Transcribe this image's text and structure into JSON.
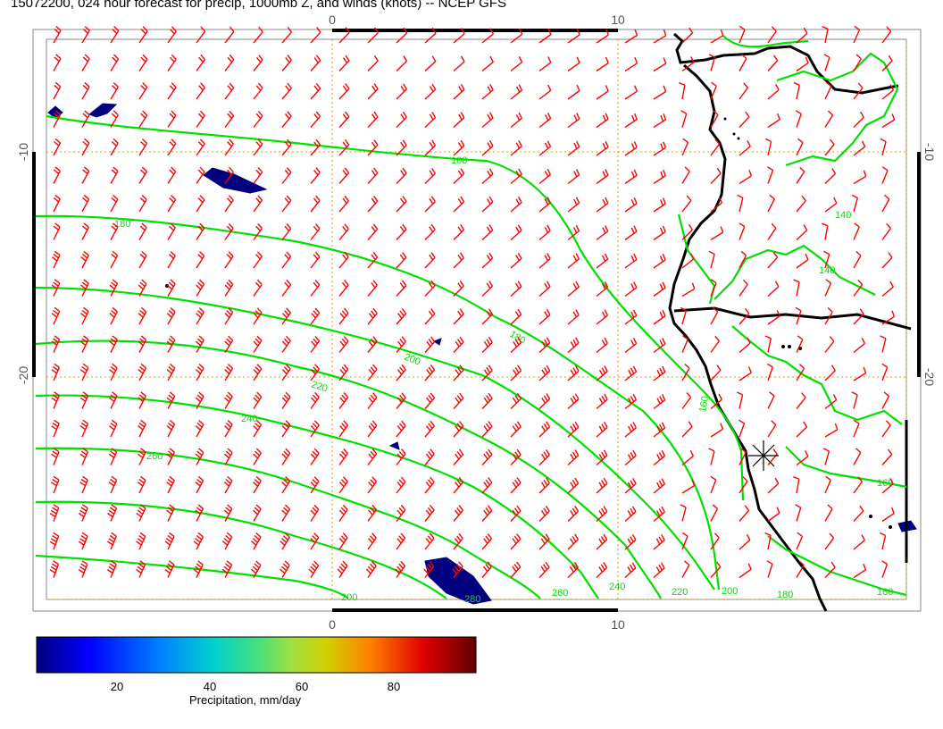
{
  "title": "15072200, 024 hour forecast for precip, 1000mb Z, and winds (knots) -- NCEP GFS",
  "axes": {
    "top_ticks": [
      "0",
      "10"
    ],
    "bottom_ticks": [
      "0",
      "10"
    ],
    "left_ticks": [
      "-10",
      "-20"
    ],
    "right_ticks": [
      "-10",
      "-20"
    ]
  },
  "contour_labels": [
    "160",
    "180",
    "180",
    "200",
    "220",
    "240",
    "260",
    "280",
    "260",
    "240",
    "220",
    "200",
    "180",
    "200",
    "160",
    "140",
    "140",
    "160",
    "180"
  ],
  "colorbar": {
    "label": "Precipitation, mm/day",
    "ticks": [
      "20",
      "40",
      "60",
      "80"
    ],
    "colors": [
      "#00007f",
      "#0000ff",
      "#0080ff",
      "#00d0d0",
      "#40e080",
      "#a0e040",
      "#d0d000",
      "#ff8000",
      "#e00000",
      "#600000"
    ]
  },
  "colors": {
    "wind_barbs": "#ff0000",
    "contours": "#00e000",
    "coastline": "#000000",
    "grid": "#d0a000",
    "precip_low": "#00007f"
  },
  "icons": [
    "wind-barb-icon",
    "station-marker-icon"
  ]
}
